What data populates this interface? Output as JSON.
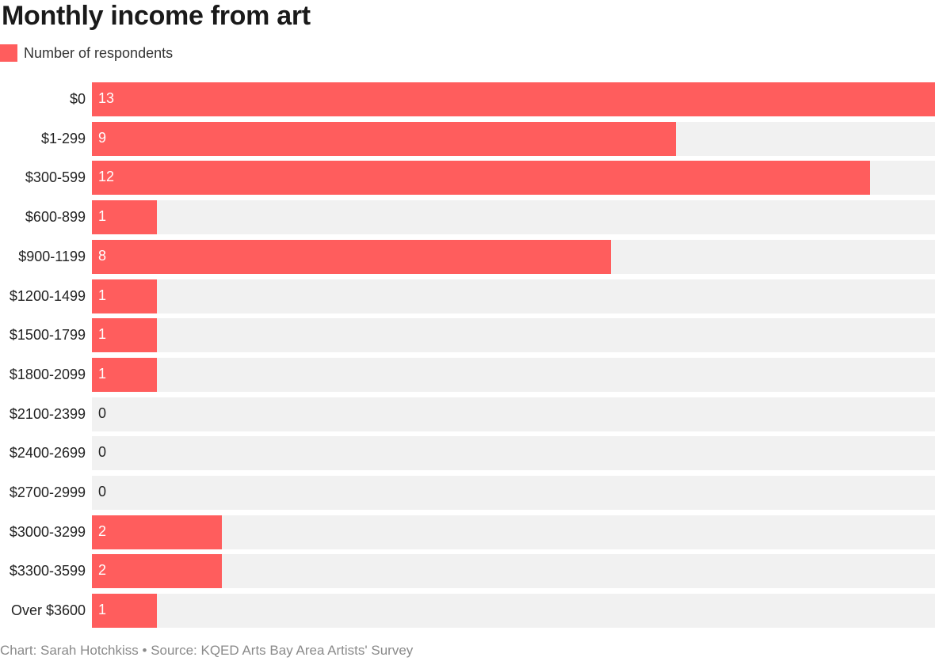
{
  "chart_data": {
    "type": "bar",
    "orientation": "horizontal",
    "title": "Monthly income from art",
    "legend": [
      "Number of respondents"
    ],
    "categories": [
      "$0",
      "$1-299",
      "$300-599",
      "$600-899",
      "$900-1199",
      "$1200-1499",
      "$1500-1799",
      "$1800-2099",
      "$2100-2399",
      "$2400-2699",
      "$2700-2999",
      "$3000-3299",
      "$3300-3599",
      "Over $3600"
    ],
    "series": [
      {
        "name": "Number of respondents",
        "values": [
          13,
          9,
          12,
          1,
          8,
          1,
          1,
          1,
          0,
          0,
          0,
          2,
          2,
          1
        ],
        "color": "#ff5d5d"
      }
    ],
    "xlabel": "",
    "ylabel": "",
    "xlim": [
      0,
      13
    ],
    "grid": false,
    "legend_position": "top-left",
    "footer": "Chart: Sarah Hotchkiss • Source: KQED Arts Bay Area Artists' Survey"
  },
  "colors": {
    "bar": "#ff5d5d",
    "track": "#f1f1f1"
  },
  "title": "Monthly income from art",
  "legend": {
    "label": "Number of respondents"
  },
  "footer": "Chart: Sarah Hotchkiss • Source: KQED Arts Bay Area Artists' Survey"
}
